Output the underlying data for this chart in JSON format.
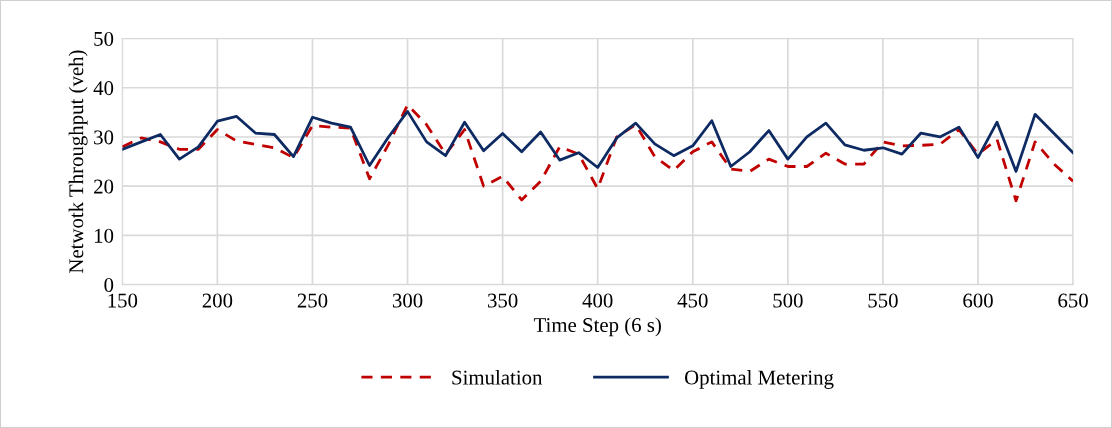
{
  "chart_data": {
    "type": "line",
    "xlabel": "Time Step (6 s)",
    "ylabel": "Netwotk Throughput (veh)",
    "x": [
      150,
      160,
      170,
      180,
      190,
      200,
      210,
      220,
      230,
      240,
      250,
      260,
      270,
      280,
      290,
      300,
      310,
      320,
      330,
      340,
      350,
      360,
      370,
      380,
      390,
      400,
      410,
      420,
      430,
      440,
      450,
      460,
      470,
      480,
      490,
      500,
      510,
      520,
      530,
      540,
      550,
      560,
      570,
      580,
      590,
      600,
      610,
      620,
      630,
      640,
      650
    ],
    "series": [
      {
        "name": "Simulation",
        "color": "#c00000",
        "line_style": "dashed",
        "values": [
          28,
          29.8,
          29,
          27.5,
          27.5,
          31.5,
          29.2,
          28.5,
          27.8,
          25.8,
          32.3,
          32,
          31.8,
          21.5,
          28.5,
          36.5,
          32.5,
          26.5,
          31.5,
          20,
          22,
          17.2,
          21,
          28,
          26.5,
          19.5,
          30,
          32.5,
          26,
          23.2,
          27,
          29,
          23.5,
          23,
          25.5,
          24,
          24,
          26.7,
          24.5,
          24.5,
          29,
          28.2,
          28.3,
          28.5,
          31.5,
          26.5,
          29.5,
          17,
          29,
          24.5,
          21
        ]
      },
      {
        "name": "Optimal Metering",
        "color": "#0d2a63",
        "line_style": "solid",
        "values": [
          27.5,
          29,
          30.5,
          25.5,
          28,
          33.2,
          34.2,
          30.8,
          30.5,
          26,
          34,
          32.8,
          32,
          24.2,
          30,
          35.2,
          29,
          26.2,
          33,
          27.2,
          30.7,
          27,
          31,
          25.3,
          26.8,
          23.8,
          29.8,
          32.8,
          28.6,
          26.2,
          28.2,
          33.3,
          24,
          27,
          31.3,
          25.5,
          30,
          32.8,
          28.4,
          27.3,
          27.8,
          26.5,
          30.8,
          30,
          32,
          25.8,
          33,
          23,
          34.6,
          30.7,
          26.8
        ]
      }
    ],
    "xlim": [
      150,
      650
    ],
    "xticks": [
      150,
      200,
      250,
      300,
      350,
      400,
      450,
      500,
      550,
      600,
      650
    ],
    "ylim": [
      0,
      50
    ],
    "yticks": [
      0,
      10,
      20,
      30,
      40,
      50
    ],
    "grid": true,
    "legend": "bottom",
    "marker": "none"
  }
}
